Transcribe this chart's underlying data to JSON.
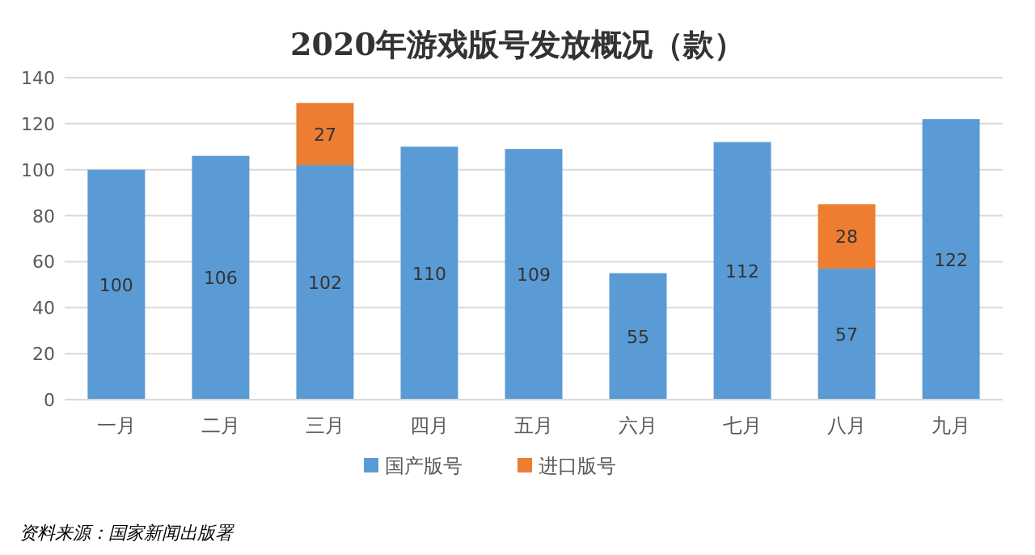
{
  "chart_data": {
    "type": "bar",
    "title": "2020年游戏版号发放概况（款）",
    "categories": [
      "一月",
      "二月",
      "三月",
      "四月",
      "五月",
      "六月",
      "七月",
      "八月",
      "九月"
    ],
    "series": [
      {
        "name": "国产版号",
        "color": "#5b9bd5",
        "values": [
          100,
          106,
          102,
          110,
          109,
          55,
          112,
          57,
          122
        ]
      },
      {
        "name": "进口版号",
        "color": "#ed7d31",
        "values": [
          null,
          null,
          27,
          null,
          null,
          null,
          null,
          28,
          null
        ]
      }
    ],
    "stacked": true,
    "data_labels": true,
    "ylim": [
      0,
      140
    ],
    "yticks": [
      0,
      20,
      40,
      60,
      80,
      100,
      120,
      140
    ],
    "grid": "y",
    "legend": "bottom",
    "annotations": [
      "资料来源：国家新闻出版署"
    ]
  }
}
